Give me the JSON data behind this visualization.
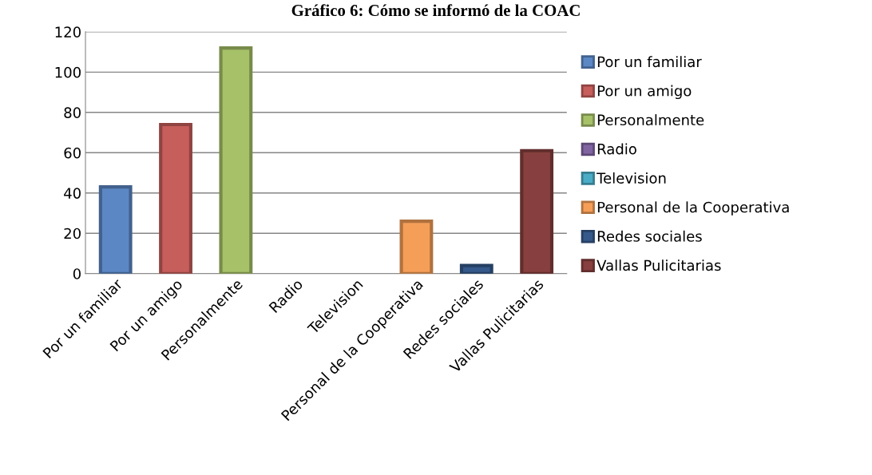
{
  "chart_data": {
    "type": "bar",
    "title": "Gráfico 6: Cómo se informó de la COAC",
    "categories": [
      "Por un familiar",
      "Por un amigo",
      "Personalmente",
      "Radio",
      "Television",
      "Personal de la Cooperativa",
      "Redes sociales",
      "Vallas Pulicitarias"
    ],
    "series": [
      {
        "name": "Por un familiar",
        "color": "#5b87c4",
        "values": [
          43,
          null,
          null,
          null,
          null,
          null,
          null,
          null
        ]
      },
      {
        "name": "Por un amigo",
        "color": "#c65e5c",
        "values": [
          null,
          74,
          null,
          null,
          null,
          null,
          null,
          null
        ]
      },
      {
        "name": "Personalmente",
        "color": "#a6c168",
        "values": [
          null,
          null,
          112,
          null,
          null,
          null,
          null,
          null
        ]
      },
      {
        "name": "Radio",
        "color": "#8064a2",
        "values": [
          null,
          null,
          null,
          0,
          null,
          null,
          null,
          null
        ]
      },
      {
        "name": "Television",
        "color": "#4bacc6",
        "values": [
          null,
          null,
          null,
          null,
          0,
          null,
          null,
          null
        ]
      },
      {
        "name": "Personal de la Cooperativa",
        "color": "#f59e58",
        "values": [
          null,
          null,
          null,
          null,
          null,
          26,
          null,
          null
        ]
      },
      {
        "name": "Redes sociales",
        "color": "#35598a",
        "values": [
          null,
          null,
          null,
          null,
          null,
          null,
          4,
          null
        ]
      },
      {
        "name": "Vallas Pulicitarias",
        "color": "#87403f",
        "values": [
          null,
          null,
          null,
          null,
          null,
          null,
          null,
          61
        ]
      }
    ],
    "ylim": [
      0,
      120
    ],
    "yticks": [
      0,
      20,
      40,
      60,
      80,
      100,
      120
    ],
    "grid": "y",
    "legend": "right"
  }
}
